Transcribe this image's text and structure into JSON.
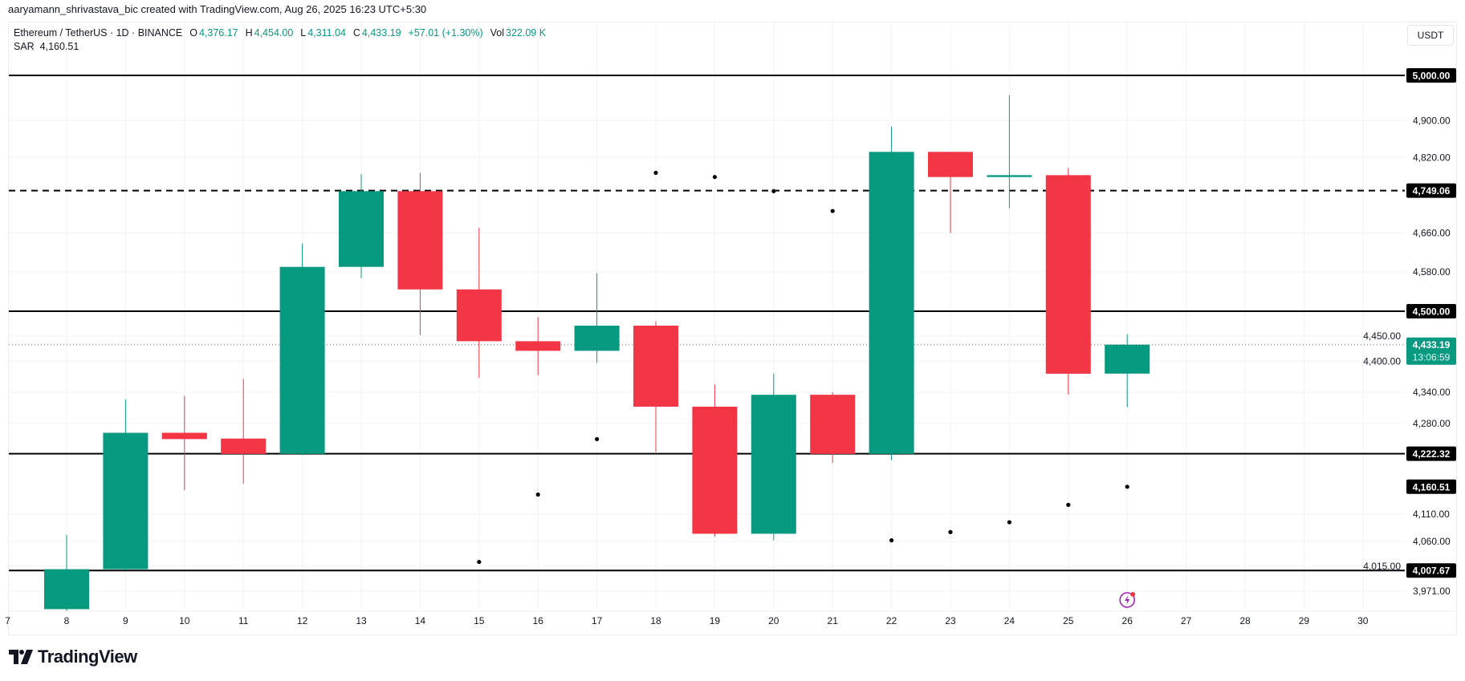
{
  "credit": "aaryamann_shrivastava_bic created with TradingView.com, Aug 26, 2025 16:23 UTC+5:30",
  "legend": {
    "symbol": "Ethereum / TetherUS · 1D · BINANCE",
    "o_label": "O",
    "o": "4,376.17",
    "h_label": "H",
    "h": "4,454.00",
    "l_label": "L",
    "l": "4,311.04",
    "c_label": "C",
    "c": "4,433.19",
    "change": "+57.01 (+1.30%)",
    "vol_label": "Vol",
    "vol": "322.09 K",
    "sar_label": "SAR",
    "sar": "4,160.51"
  },
  "currency_button": "USDT",
  "brand": "TradingView",
  "colors": {
    "up": "#089981",
    "down": "#f23645",
    "level": "#000000",
    "sar": "#000000",
    "grid": "#f2f3f5",
    "event": "#9c27b0"
  },
  "chart_data": {
    "type": "candlestick",
    "y_scale": "log",
    "ylim": [
      3900,
      5030
    ],
    "grid": true,
    "x_ticks": [
      "7",
      "8",
      "9",
      "10",
      "11",
      "12",
      "13",
      "14",
      "15",
      "16",
      "17",
      "18",
      "19",
      "20",
      "21",
      "22",
      "23",
      "24",
      "25",
      "26",
      "27",
      "28",
      "29",
      "30"
    ],
    "y_ticks": [
      {
        "value": 4900,
        "label": "4,900.00"
      },
      {
        "value": 4820,
        "label": "4,820.00"
      },
      {
        "value": 4660,
        "label": "4,660.00"
      },
      {
        "value": 4580,
        "label": "4,580.00"
      },
      {
        "value": 4450,
        "label": "4,450.00"
      },
      {
        "value": 4400,
        "label": "4,400.00"
      },
      {
        "value": 4340,
        "label": "4,340.00"
      },
      {
        "value": 4280,
        "label": "4,280.00"
      },
      {
        "value": 4110,
        "label": "4,110.00"
      },
      {
        "value": 4060,
        "label": "4,060.00"
      },
      {
        "value": 4015,
        "label": "4,015.00"
      },
      {
        "value": 3971,
        "label": "3,971.00"
      }
    ],
    "candles": [
      {
        "day": 8,
        "o": 3939,
        "h": 4072,
        "l": 3890,
        "c": 4010
      },
      {
        "day": 9,
        "o": 4010,
        "h": 4326,
        "l": 4008,
        "c": 4262
      },
      {
        "day": 10,
        "o": 4262,
        "h": 4333,
        "l": 4154,
        "c": 4250
      },
      {
        "day": 11,
        "o": 4251,
        "h": 4366,
        "l": 4166,
        "c": 4222
      },
      {
        "day": 12,
        "o": 4222,
        "h": 4638,
        "l": 4220,
        "c": 4590
      },
      {
        "day": 13,
        "o": 4590,
        "h": 4784,
        "l": 4567,
        "c": 4748
      },
      {
        "day": 14,
        "o": 4748,
        "h": 4787,
        "l": 4452,
        "c": 4544
      },
      {
        "day": 15,
        "o": 4544,
        "h": 4671,
        "l": 4368,
        "c": 4440
      },
      {
        "day": 16,
        "o": 4440,
        "h": 4488,
        "l": 4373,
        "c": 4421
      },
      {
        "day": 17,
        "o": 4421,
        "h": 4577,
        "l": 4397,
        "c": 4471
      },
      {
        "day": 18,
        "o": 4471,
        "h": 4480,
        "l": 4226,
        "c": 4312
      },
      {
        "day": 19,
        "o": 4312,
        "h": 4355,
        "l": 4069,
        "c": 4074
      },
      {
        "day": 20,
        "o": 4074,
        "h": 4376,
        "l": 4062,
        "c": 4335
      },
      {
        "day": 21,
        "o": 4335,
        "h": 4340,
        "l": 4205,
        "c": 4222
      },
      {
        "day": 22,
        "o": 4222,
        "h": 4887,
        "l": 4210,
        "c": 4832
      },
      {
        "day": 23,
        "o": 4832,
        "h": 4832,
        "l": 4660,
        "c": 4778
      },
      {
        "day": 24,
        "o": 4778,
        "h": 4956,
        "l": 4712,
        "c": 4782
      },
      {
        "day": 25,
        "o": 4782,
        "h": 4797,
        "l": 4335,
        "c": 4376
      },
      {
        "day": 26,
        "o": 4376.17,
        "h": 4454.0,
        "l": 4311.04,
        "c": 4433.19
      }
    ],
    "sar": [
      {
        "day": 15,
        "value": 4023
      },
      {
        "day": 16,
        "value": 4146
      },
      {
        "day": 17,
        "value": 4250
      },
      {
        "day": 18,
        "value": 4787
      },
      {
        "day": 19,
        "value": 4778
      },
      {
        "day": 20,
        "value": 4748
      },
      {
        "day": 21,
        "value": 4706
      },
      {
        "day": 22,
        "value": 4062
      },
      {
        "day": 23,
        "value": 4077
      },
      {
        "day": 24,
        "value": 4095
      },
      {
        "day": 25,
        "value": 4127
      },
      {
        "day": 26,
        "value": 4160.51
      }
    ],
    "levels": [
      {
        "value": 5000,
        "label": "5,000.00",
        "style": "solid"
      },
      {
        "value": 4749.06,
        "label": "4,749.06",
        "style": "dashed"
      },
      {
        "value": 4500,
        "label": "4,500.00",
        "style": "solid"
      },
      {
        "value": 4222.32,
        "label": "4,222.32",
        "style": "solid"
      },
      {
        "value": 4007.67,
        "label": "4,007.67",
        "style": "solid"
      }
    ],
    "sar_badge": {
      "value": 4160.51,
      "label": "4,160.51"
    },
    "last_price": {
      "value": 4433.19,
      "label": "4,433.19",
      "countdown": "13:06:59"
    },
    "event_marker_day": 26
  }
}
